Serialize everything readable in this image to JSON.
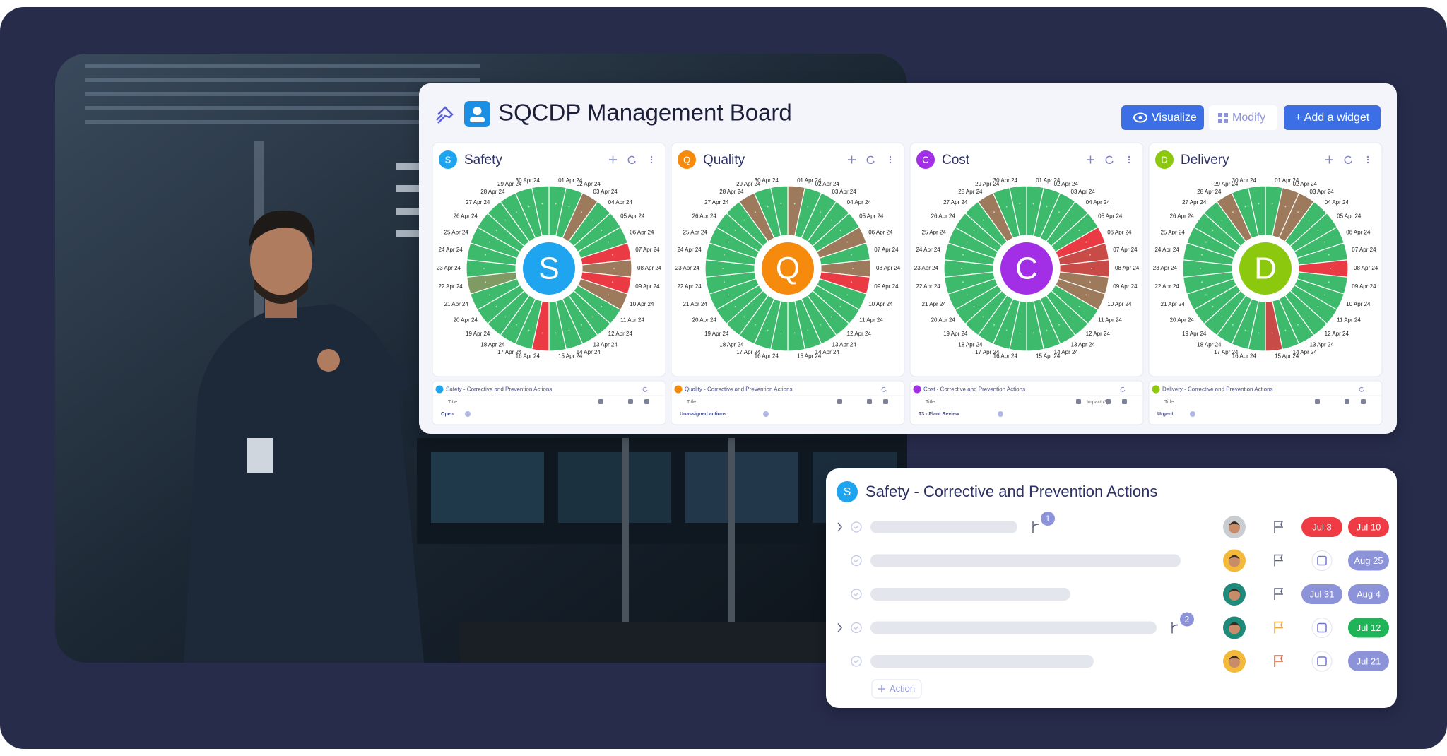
{
  "header": {
    "title": "SQCDP Management Board",
    "buttons": [
      "Visualize",
      "Modify",
      "+ Add a widget"
    ]
  },
  "days": [
    "01 Apr 24",
    "02 Apr 24",
    "03 Apr 24",
    "04 Apr 24",
    "05 Apr 24",
    "06 Apr 24",
    "07 Apr 24",
    "08 Apr 24",
    "09 Apr 24",
    "10 Apr 24",
    "11 Apr 24",
    "12 Apr 24",
    "13 Apr 24",
    "14 Apr 24",
    "15 Apr 24",
    "16 Apr 24",
    "17 Apr 24",
    "18 Apr 24",
    "19 Apr 24",
    "20 Apr 24",
    "21 Apr 24",
    "22 Apr 24",
    "23 Apr 24",
    "24 Apr 24",
    "25 Apr 24",
    "26 Apr 24",
    "27 Apr 24",
    "28 Apr 24",
    "29 Apr 24",
    "30 Apr 24"
  ],
  "widgets": [
    {
      "letter": "S",
      "name": "Safety",
      "color": "#1fa5ef",
      "actions_title": "Safety - Corrective and Prevention Actions",
      "columns": [
        "Title"
      ],
      "group": "Open",
      "segment_colors": [
        "#3dba6b",
        "#3dba6b",
        "#9c7a5b",
        "#3dba6b",
        "#3dba6b",
        "#3dba6b",
        "#ea3b45",
        "#9c7a5b",
        "#ea3b45",
        "#9c7a5b",
        "#3dba6b",
        "#3dba6b",
        "#3dba6b",
        "#3dba6b",
        "#3dba6b",
        "#ea3b45",
        "#3dba6b",
        "#3dba6b",
        "#3dba6b",
        "#3dba6b",
        "#3dba6b",
        "#7f9a62",
        "#3dba6b",
        "#3dba6b",
        "#3dba6b",
        "#3dba6b",
        "#3dba6b",
        "#3dba6b",
        "#3dba6b",
        "#3dba6b"
      ]
    },
    {
      "letter": "Q",
      "name": "Quality",
      "color": "#f58a0c",
      "actions_title": "Quality - Corrective and Prevention Actions",
      "columns": [
        "Title"
      ],
      "group": "Unassigned actions",
      "segment_colors": [
        "#9c7a5b",
        "#3dba6b",
        "#3dba6b",
        "#3dba6b",
        "#3dba6b",
        "#9c7a5b",
        "#3dba6b",
        "#9c7a5b",
        "#ea3b45",
        "#3dba6b",
        "#3dba6b",
        "#3dba6b",
        "#3dba6b",
        "#3dba6b",
        "#3dba6b",
        "#3dba6b",
        "#3dba6b",
        "#3dba6b",
        "#3dba6b",
        "#3dba6b",
        "#3dba6b",
        "#3dba6b",
        "#3dba6b",
        "#3dba6b",
        "#3dba6b",
        "#3dba6b",
        "#3dba6b",
        "#9c7a5b",
        "#3dba6b",
        "#3dba6b"
      ]
    },
    {
      "letter": "C",
      "name": "Cost",
      "color": "#a22fe6",
      "actions_title": "Cost - Corrective and Prevention Actions",
      "columns": [
        "Title",
        "Impact ($)"
      ],
      "group": "T3 - Plant Review",
      "segment_colors": [
        "#3dba6b",
        "#3dba6b",
        "#3dba6b",
        "#3dba6b",
        "#3dba6b",
        "#ea3b45",
        "#c94b48",
        "#c94b48",
        "#9c7a5b",
        "#9c7a5b",
        "#3dba6b",
        "#3dba6b",
        "#3dba6b",
        "#3dba6b",
        "#3dba6b",
        "#3dba6b",
        "#3dba6b",
        "#3dba6b",
        "#3dba6b",
        "#3dba6b",
        "#3dba6b",
        "#3dba6b",
        "#3dba6b",
        "#3dba6b",
        "#3dba6b",
        "#3dba6b",
        "#3dba6b",
        "#9c7a5b",
        "#3dba6b",
        "#3dba6b"
      ]
    },
    {
      "letter": "D",
      "name": "Delivery",
      "color": "#8cc90e",
      "actions_title": "Delivery - Corrective and Prevention Actions",
      "columns": [
        "Title"
      ],
      "group": "Urgent",
      "segment_colors": [
        "#3dba6b",
        "#9c7a5b",
        "#9c7a5b",
        "#3dba6b",
        "#3dba6b",
        "#3dba6b",
        "#3dba6b",
        "#ea3b45",
        "#3dba6b",
        "#3dba6b",
        "#3dba6b",
        "#3dba6b",
        "#3dba6b",
        "#3dba6b",
        "#c94b48",
        "#3dba6b",
        "#3dba6b",
        "#3dba6b",
        "#3dba6b",
        "#3dba6b",
        "#3dba6b",
        "#3dba6b",
        "#3dba6b",
        "#3dba6b",
        "#3dba6b",
        "#3dba6b",
        "#3dba6b",
        "#9c7a5b",
        "#3dba6b",
        "#3dba6b"
      ]
    }
  ],
  "panel": {
    "icon": "S",
    "title": "Safety - Corrective and Prevention Actions",
    "add": "Action",
    "rows": [
      {
        "subtasks": "1",
        "flag": "#5c6080",
        "dates": [
          {
            "label": "Jul 3",
            "color": "#ef3b43"
          },
          {
            "label": "Jul 10",
            "color": "#ef3b43"
          }
        ]
      },
      {
        "subtasks": null,
        "flag": "#5c6080",
        "dates": [
          {
            "label": "Aug 25",
            "color": "#8d93d9"
          }
        ]
      },
      {
        "subtasks": null,
        "flag": "#5c6080",
        "dates": [
          {
            "label": "Jul 31",
            "color": "#8d93d9"
          },
          {
            "label": "Aug 4",
            "color": "#8d93d9"
          }
        ]
      },
      {
        "subtasks": "2",
        "flag": "#f2a23a",
        "dates": [
          {
            "label": "Jul 12",
            "color": "#1fb457"
          }
        ]
      },
      {
        "subtasks": null,
        "flag": "#ec5a3a",
        "dates": [
          {
            "label": "Jul 21",
            "color": "#8d93d9"
          }
        ]
      }
    ]
  }
}
